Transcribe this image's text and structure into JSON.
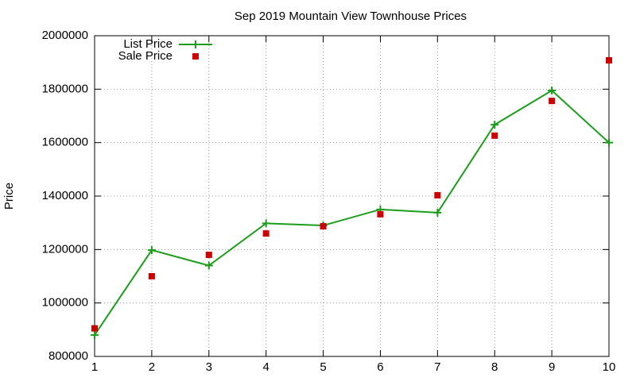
{
  "chart_data": {
    "type": "line",
    "title": "Sep 2019 Mountain View Townhouse Prices",
    "ylabel": "Price",
    "x": [
      1,
      2,
      3,
      4,
      5,
      6,
      7,
      8,
      9,
      10
    ],
    "series": [
      {
        "name": "List Price",
        "color": "#1a9e1a",
        "mode": "lines+markers",
        "values": [
          880000,
          1198000,
          1140000,
          1298000,
          1290000,
          1350000,
          1338000,
          1667000,
          1795000,
          1600000
        ]
      },
      {
        "name": "Sale Price",
        "color": "#cc0000",
        "mode": "markers",
        "values": [
          905000,
          1100000,
          1180000,
          1260000,
          1287000,
          1332000,
          1403000,
          1626000,
          1756000,
          1908000
        ]
      }
    ],
    "xlim": [
      1,
      10
    ],
    "xticks": [
      1,
      2,
      3,
      4,
      5,
      6,
      7,
      8,
      9,
      10
    ],
    "ylim": [
      800000,
      2000000
    ],
    "yticks": [
      800000,
      1000000,
      1200000,
      1400000,
      1600000,
      1800000,
      2000000
    ],
    "grid": true,
    "legend": "top-left"
  }
}
